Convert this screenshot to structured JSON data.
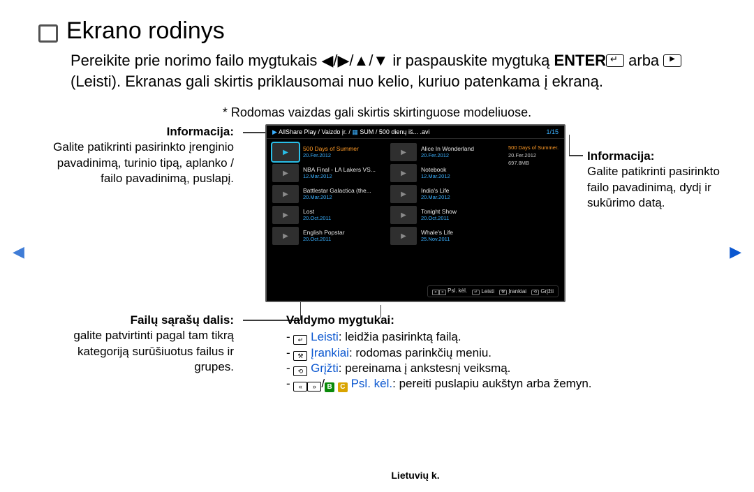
{
  "title": "Ekrano rodinys",
  "intro": {
    "part1": "Pereikite prie norimo failo mygtukais ",
    "arrows": "◀/▶/▲/▼",
    "part2": " ir paspauskite mygtuką ",
    "enter": "ENTER",
    "part3": " arba ",
    "part4": " (Leisti). Ekranas gali skirtis priklausomai nuo kelio, kuriuo patenkama į ekraną."
  },
  "note": "* Rodomas vaizdas gali skirtis skirtinguose modeliuose.",
  "tv": {
    "path_prefix": "AllShare Play",
    "path_mid": "/ Vaizdo įr. /",
    "path_sum": "SUM",
    "path_file": "/ 500 dienų iš... .avi",
    "page_count": "1/15",
    "meta": {
      "title": "500 Days of Summer.avi",
      "date": "20.Fer.2012",
      "size": "697.8MB"
    },
    "left_files": [
      {
        "title": "500 Days of Summer",
        "date": "20.Fer.2012",
        "selected": true
      },
      {
        "title": "NBA Final - LA Lakers VS...",
        "date": "12.Mar.2012"
      },
      {
        "title": "Battlestar Galactica (the...",
        "date": "20.Mar.2012"
      },
      {
        "title": "Lost",
        "date": "20.Oct.2011"
      },
      {
        "title": "English Popstar",
        "date": "20.Oct.2011"
      }
    ],
    "right_files": [
      {
        "title": "Alice In Wonderland",
        "date": "20.Fer.2012"
      },
      {
        "title": "Notebook",
        "date": "12.Mar.2012"
      },
      {
        "title": "India's Life",
        "date": "20.Mar.2012"
      },
      {
        "title": "Tonight Show",
        "date": "20.Oct.2011"
      },
      {
        "title": "Whale's Life",
        "date": "25.Nov.2011"
      }
    ],
    "footer": {
      "page": "Psl. kėl.",
      "play": "Leisti",
      "tools": "Įrankiai",
      "back": "Grįžti"
    }
  },
  "callouts": {
    "info_left": {
      "h": "Informacija:",
      "t": "Galite patikrinti pasirinkto įrenginio pavadinimą, turinio tipą, aplanko / failo pavadinimą, puslapį."
    },
    "info_right": {
      "h": "Informacija:",
      "t": "Galite patikrinti pasirinkto failo pavadinimą, dydį ir sukūrimo datą."
    },
    "files": {
      "h": "Failų sąrašų dalis:",
      "t": "galite patvirtinti pagal tam tikrą kategoriją surūšiuotus failus ir grupes."
    },
    "controls": {
      "h": "Valdymo mygtukai:",
      "items": [
        {
          "label": "Leisti",
          "text": ": leidžia pasirinktą failą."
        },
        {
          "label": "Įrankiai",
          "text": ": rodomas parinkčių meniu."
        },
        {
          "label": "Grįžti",
          "text": ": pereinama į ankstesnį veiksmą."
        },
        {
          "label": "Psl. kėl.",
          "text": ": pereiti puslapiu aukštyn arba žemyn."
        }
      ]
    }
  },
  "footer": "Lietuvių k."
}
